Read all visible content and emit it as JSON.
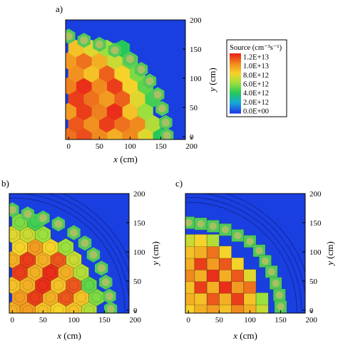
{
  "panels": [
    {
      "label": "a)",
      "kind": "hex",
      "xlabel_var": "x",
      "xlabel_unit": " (cm)",
      "ylabel_var": "y",
      "ylabel_unit": " (cm)"
    },
    {
      "label": "b)",
      "kind": "hexmesh",
      "xlabel_var": "x",
      "xlabel_unit": " (cm)",
      "ylabel_var": "y",
      "ylabel_unit": " (cm)"
    },
    {
      "label": "c)",
      "kind": "squares",
      "xlabel_var": "x",
      "xlabel_unit": " (cm)",
      "ylabel_var": "y",
      "ylabel_unit": " (cm)"
    }
  ],
  "legend": {
    "title": "Source (cm⁻³s⁻¹)",
    "entries": [
      "1.2E+13",
      "1.0E+13",
      "8.0E+12",
      "6.0E+12",
      "4.0E+12",
      "2.0E+12",
      "0.0E+00"
    ],
    "colors": [
      "#e8241a",
      "#f08a1e",
      "#f5d32a",
      "#9be03c",
      "#24c85a",
      "#18a8d8",
      "#1e3ce6"
    ]
  },
  "colors": {
    "background_fill": "#1a3fe0",
    "reflector": "#1a3fe0"
  },
  "chart_data": [
    {
      "type": "heatmap",
      "panel": "a)",
      "xlabel": "x (cm)",
      "ylabel": "y (cm)",
      "xlim": [
        -5,
        190
      ],
      "ylim": [
        -5,
        200
      ],
      "xticks": [
        0,
        50,
        100,
        150,
        200
      ],
      "yticks": [
        0,
        50,
        100,
        150,
        200
      ],
      "values": [
        {
          "x": 0,
          "y": 0,
          "v": 10.5
        },
        {
          "x": 25,
          "y": 0,
          "v": 11.2
        },
        {
          "x": 50,
          "y": 0,
          "v": 10.0
        },
        {
          "x": 75,
          "y": 0,
          "v": 9.0
        },
        {
          "x": 100,
          "y": 0,
          "v": 10.0
        },
        {
          "x": 125,
          "y": 0,
          "v": 7.5
        },
        {
          "x": 150,
          "y": 0,
          "v": 4.0
        },
        {
          "x": 12,
          "y": 22,
          "v": 11.0
        },
        {
          "x": 37,
          "y": 22,
          "v": 9.8
        },
        {
          "x": 62,
          "y": 22,
          "v": 11.5
        },
        {
          "x": 87,
          "y": 22,
          "v": 10.5
        },
        {
          "x": 112,
          "y": 22,
          "v": 10.0
        },
        {
          "x": 137,
          "y": 22,
          "v": 6.5
        },
        {
          "x": 0,
          "y": 43,
          "v": 9.5
        },
        {
          "x": 25,
          "y": 43,
          "v": 11.5
        },
        {
          "x": 50,
          "y": 43,
          "v": 10.2
        },
        {
          "x": 75,
          "y": 43,
          "v": 11.8
        },
        {
          "x": 100,
          "y": 43,
          "v": 8.5
        },
        {
          "x": 125,
          "y": 43,
          "v": 6.0
        },
        {
          "x": 12,
          "y": 65,
          "v": 11.5
        },
        {
          "x": 37,
          "y": 65,
          "v": 10.5
        },
        {
          "x": 62,
          "y": 65,
          "v": 9.5
        },
        {
          "x": 87,
          "y": 65,
          "v": 10.8
        },
        {
          "x": 112,
          "y": 65,
          "v": 7.5
        },
        {
          "x": 137,
          "y": 65,
          "v": 4.5
        },
        {
          "x": 0,
          "y": 87,
          "v": 10.2
        },
        {
          "x": 25,
          "y": 87,
          "v": 11.8
        },
        {
          "x": 50,
          "y": 87,
          "v": 10.0
        },
        {
          "x": 75,
          "y": 87,
          "v": 11.5
        },
        {
          "x": 100,
          "y": 87,
          "v": 8.0
        },
        {
          "x": 125,
          "y": 87,
          "v": 5.0
        },
        {
          "x": 12,
          "y": 108,
          "v": 9.8
        },
        {
          "x": 37,
          "y": 108,
          "v": 8.5
        },
        {
          "x": 62,
          "y": 108,
          "v": 10.8
        },
        {
          "x": 87,
          "y": 108,
          "v": 8.0
        },
        {
          "x": 112,
          "y": 108,
          "v": 5.5
        },
        {
          "x": 0,
          "y": 130,
          "v": 9.5
        },
        {
          "x": 25,
          "y": 130,
          "v": 10.5
        },
        {
          "x": 50,
          "y": 130,
          "v": 9.0
        },
        {
          "x": 75,
          "y": 130,
          "v": 7.0
        },
        {
          "x": 100,
          "y": 130,
          "v": 5.0
        },
        {
          "x": 12,
          "y": 151,
          "v": 8.5
        },
        {
          "x": 37,
          "y": 151,
          "v": 7.5
        },
        {
          "x": 62,
          "y": 151,
          "v": 6.0
        },
        {
          "x": 87,
          "y": 151,
          "v": 4.0
        }
      ]
    },
    {
      "type": "heatmap",
      "panel": "b)",
      "xlabel": "x (cm)",
      "ylabel": "y (cm)",
      "xlim": [
        -5,
        190
      ],
      "ylim": [
        -5,
        200
      ],
      "xticks": [
        0,
        50,
        100,
        150,
        200
      ],
      "yticks": [
        0,
        50,
        100,
        150,
        200
      ],
      "values": [
        {
          "x": 0,
          "y": 0,
          "v": 9.0
        },
        {
          "x": 25,
          "y": 0,
          "v": 9.5
        },
        {
          "x": 50,
          "y": 0,
          "v": 8.5
        },
        {
          "x": 75,
          "y": 0,
          "v": 8.0
        },
        {
          "x": 100,
          "y": 0,
          "v": 8.5
        },
        {
          "x": 125,
          "y": 0,
          "v": 6.5
        },
        {
          "x": 12,
          "y": 22,
          "v": 9.5
        },
        {
          "x": 37,
          "y": 22,
          "v": 11.5
        },
        {
          "x": 62,
          "y": 22,
          "v": 9.0
        },
        {
          "x": 87,
          "y": 22,
          "v": 11.0
        },
        {
          "x": 112,
          "y": 22,
          "v": 8.5
        },
        {
          "x": 137,
          "y": 22,
          "v": 5.5
        },
        {
          "x": 0,
          "y": 43,
          "v": 8.5
        },
        {
          "x": 25,
          "y": 43,
          "v": 9.0
        },
        {
          "x": 50,
          "y": 43,
          "v": 11.8
        },
        {
          "x": 75,
          "y": 43,
          "v": 8.5
        },
        {
          "x": 100,
          "y": 43,
          "v": 11.0
        },
        {
          "x": 125,
          "y": 43,
          "v": 5.0
        },
        {
          "x": 12,
          "y": 65,
          "v": 11.5
        },
        {
          "x": 37,
          "y": 65,
          "v": 9.0
        },
        {
          "x": 62,
          "y": 65,
          "v": 11.8
        },
        {
          "x": 87,
          "y": 65,
          "v": 9.0
        },
        {
          "x": 112,
          "y": 65,
          "v": 6.5
        },
        {
          "x": 0,
          "y": 87,
          "v": 9.0
        },
        {
          "x": 25,
          "y": 87,
          "v": 11.5
        },
        {
          "x": 50,
          "y": 87,
          "v": 9.0
        },
        {
          "x": 75,
          "y": 87,
          "v": 11.0
        },
        {
          "x": 100,
          "y": 87,
          "v": 7.0
        },
        {
          "x": 12,
          "y": 108,
          "v": 8.0
        },
        {
          "x": 37,
          "y": 108,
          "v": 9.5
        },
        {
          "x": 62,
          "y": 108,
          "v": 8.0
        },
        {
          "x": 87,
          "y": 108,
          "v": 6.0
        },
        {
          "x": 0,
          "y": 130,
          "v": 7.5
        },
        {
          "x": 25,
          "y": 130,
          "v": 7.0
        },
        {
          "x": 50,
          "y": 130,
          "v": 6.0
        },
        {
          "x": 12,
          "y": 151,
          "v": 5.5
        },
        {
          "x": 37,
          "y": 151,
          "v": 4.5
        }
      ]
    },
    {
      "type": "heatmap",
      "panel": "c)",
      "xlabel": "x (cm)",
      "ylabel": "y (cm)",
      "xlim": [
        -5,
        190
      ],
      "ylim": [
        -5,
        200
      ],
      "xticks": [
        0,
        50,
        100,
        150,
        200
      ],
      "yticks": [
        0,
        50,
        100,
        150,
        200
      ],
      "values": [
        {
          "x": 0,
          "y": 0,
          "v": 8.0
        },
        {
          "x": 20,
          "y": 0,
          "v": 9.0
        },
        {
          "x": 40,
          "y": 0,
          "v": 9.5
        },
        {
          "x": 60,
          "y": 0,
          "v": 8.5
        },
        {
          "x": 80,
          "y": 0,
          "v": 10.0
        },
        {
          "x": 100,
          "y": 0,
          "v": 9.0
        },
        {
          "x": 120,
          "y": 0,
          "v": 7.0
        },
        {
          "x": 0,
          "y": 20,
          "v": 9.0
        },
        {
          "x": 20,
          "y": 20,
          "v": 8.5
        },
        {
          "x": 40,
          "y": 20,
          "v": 11.0
        },
        {
          "x": 60,
          "y": 20,
          "v": 9.0
        },
        {
          "x": 80,
          "y": 20,
          "v": 11.5
        },
        {
          "x": 100,
          "y": 20,
          "v": 8.5
        },
        {
          "x": 120,
          "y": 20,
          "v": 6.0
        },
        {
          "x": 0,
          "y": 40,
          "v": 8.5
        },
        {
          "x": 20,
          "y": 40,
          "v": 11.5
        },
        {
          "x": 40,
          "y": 40,
          "v": 9.0
        },
        {
          "x": 60,
          "y": 40,
          "v": 11.8
        },
        {
          "x": 80,
          "y": 40,
          "v": 9.5
        },
        {
          "x": 100,
          "y": 40,
          "v": 10.5
        },
        {
          "x": 0,
          "y": 60,
          "v": 10.0
        },
        {
          "x": 20,
          "y": 60,
          "v": 9.0
        },
        {
          "x": 40,
          "y": 60,
          "v": 11.8
        },
        {
          "x": 60,
          "y": 60,
          "v": 9.0
        },
        {
          "x": 80,
          "y": 60,
          "v": 11.0
        },
        {
          "x": 100,
          "y": 60,
          "v": 7.5
        },
        {
          "x": 0,
          "y": 80,
          "v": 9.0
        },
        {
          "x": 20,
          "y": 80,
          "v": 11.5
        },
        {
          "x": 40,
          "y": 80,
          "v": 9.5
        },
        {
          "x": 60,
          "y": 80,
          "v": 11.0
        },
        {
          "x": 80,
          "y": 80,
          "v": 8.0
        },
        {
          "x": 0,
          "y": 100,
          "v": 8.5
        },
        {
          "x": 20,
          "y": 100,
          "v": 9.0
        },
        {
          "x": 40,
          "y": 100,
          "v": 10.5
        },
        {
          "x": 60,
          "y": 100,
          "v": 8.0
        },
        {
          "x": 0,
          "y": 120,
          "v": 7.0
        },
        {
          "x": 20,
          "y": 120,
          "v": 8.0
        },
        {
          "x": 40,
          "y": 120,
          "v": 6.5
        }
      ]
    }
  ]
}
